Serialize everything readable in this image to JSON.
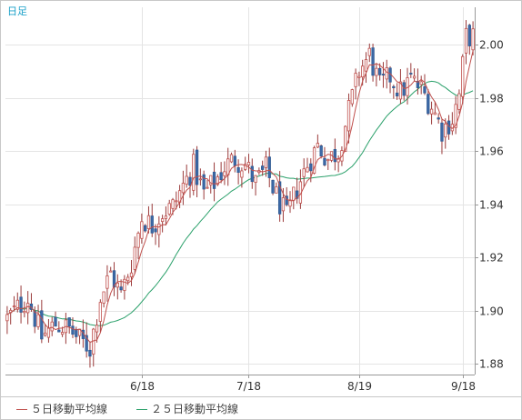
{
  "chart_data": {
    "type": "candlestick",
    "period_label": "日足",
    "y_ticks": [
      "2.00",
      "1.98",
      "1.96",
      "1.94",
      "1.92",
      "1.90",
      "1.88"
    ],
    "ylim": [
      1.876,
      2.014
    ],
    "x_ticks": [
      {
        "label": "6/18",
        "index": 39
      },
      {
        "label": "7/18",
        "index": 70
      },
      {
        "label": "8/19",
        "index": 102
      },
      {
        "label": "9/18",
        "index": 132
      }
    ],
    "grid": true,
    "legend": [
      {
        "name": "５日移動平均線",
        "color": "#c0504d"
      },
      {
        "name": "２５日移動平均線",
        "color": "#2aa06a"
      }
    ],
    "colors": {
      "up_fill": "#ffffff",
      "up_border": "#c0504d",
      "down_fill": "#3d6aa8",
      "down_border": "#2f5a92",
      "wick": "#9a3a3a",
      "grid": "#e4e4e4",
      "axis": "#999999",
      "label": "#333333"
    },
    "control_points": [
      [
        0,
        1.897
      ],
      [
        6,
        1.905
      ],
      [
        10,
        1.89
      ],
      [
        14,
        1.895
      ],
      [
        18,
        1.893
      ],
      [
        21,
        1.889
      ],
      [
        24,
        1.886
      ],
      [
        27,
        1.905
      ],
      [
        30,
        1.914
      ],
      [
        33,
        1.906
      ],
      [
        36,
        1.918
      ],
      [
        39,
        1.935
      ],
      [
        42,
        1.932
      ],
      [
        45,
        1.937
      ],
      [
        48,
        1.939
      ],
      [
        51,
        1.947
      ],
      [
        54,
        1.954
      ],
      [
        57,
        1.944
      ],
      [
        60,
        1.948
      ],
      [
        63,
        1.954
      ],
      [
        66,
        1.957
      ],
      [
        69,
        1.955
      ],
      [
        72,
        1.948
      ],
      [
        75,
        1.953
      ],
      [
        78,
        1.943
      ],
      [
        81,
        1.935
      ],
      [
        84,
        1.946
      ],
      [
        87,
        1.955
      ],
      [
        90,
        1.962
      ],
      [
        93,
        1.957
      ],
      [
        96,
        1.96
      ],
      [
        99,
        1.975
      ],
      [
        102,
        1.99
      ],
      [
        105,
        1.996
      ],
      [
        108,
        1.984
      ],
      [
        111,
        1.988
      ],
      [
        114,
        1.982
      ],
      [
        117,
        1.987
      ],
      [
        120,
        1.983
      ],
      [
        123,
        1.977
      ],
      [
        126,
        1.968
      ],
      [
        129,
        1.972
      ],
      [
        131,
        1.981
      ],
      [
        133,
        2.003
      ]
    ]
  }
}
